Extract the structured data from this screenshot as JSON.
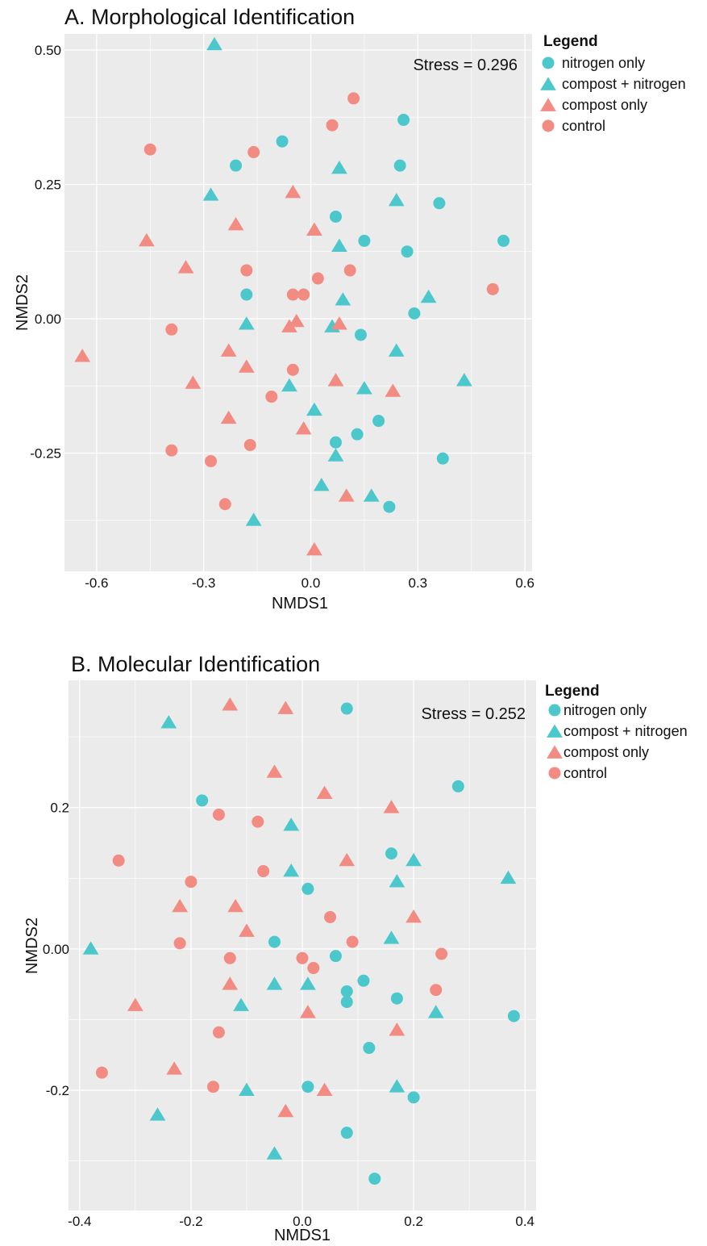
{
  "colors": {
    "nitrogen": "#4cc8cc",
    "compost": "#f28b82",
    "panel": "#ebebeb",
    "grid": "#ffffff"
  },
  "chart_data": [
    {
      "type": "scatter",
      "title": "A. Morphological Identification",
      "xlabel": "NMDS1",
      "ylabel": "NMDS2",
      "annotation": "Stress = 0.296",
      "xlim": [
        -0.69,
        0.62
      ],
      "ylim": [
        -0.47,
        0.53
      ],
      "xticks": [
        -0.6,
        -0.3,
        0.0,
        0.3,
        0.6
      ],
      "xtick_labels": [
        "-0.6",
        "-0.3",
        "0.0",
        "0.3",
        "0.6"
      ],
      "yticks": [
        -0.25,
        0.0,
        0.25,
        0.5
      ],
      "ytick_labels": [
        "-0.25",
        "0.00",
        "0.25",
        "0.50"
      ],
      "legend": {
        "title": "Legend",
        "position": "right",
        "entries": [
          {
            "label": "nitrogen only",
            "shape": "circle",
            "color": "#4cc8cc"
          },
          {
            "label": "compost + nitrogen",
            "shape": "triangle",
            "color": "#4cc8cc"
          },
          {
            "label": "compost only",
            "shape": "triangle",
            "color": "#f28b82"
          },
          {
            "label": "control",
            "shape": "circle",
            "color": "#f28b82"
          }
        ]
      },
      "series": [
        {
          "name": "nitrogen only",
          "shape": "circle",
          "color": "#4cc8cc",
          "points": [
            [
              -0.08,
              0.33
            ],
            [
              -0.21,
              0.285
            ],
            [
              0.26,
              0.37
            ],
            [
              0.25,
              0.285
            ],
            [
              0.36,
              0.215
            ],
            [
              0.07,
              0.19
            ],
            [
              0.15,
              0.145
            ],
            [
              0.27,
              0.125
            ],
            [
              0.54,
              0.145
            ],
            [
              -0.18,
              0.045
            ],
            [
              0.29,
              0.01
            ],
            [
              0.14,
              -0.03
            ],
            [
              0.19,
              -0.19
            ],
            [
              0.13,
              -0.215
            ],
            [
              0.07,
              -0.23
            ],
            [
              0.37,
              -0.26
            ],
            [
              0.22,
              -0.35
            ]
          ]
        },
        {
          "name": "compost + nitrogen",
          "shape": "triangle",
          "color": "#4cc8cc",
          "points": [
            [
              -0.27,
              0.51
            ],
            [
              -0.28,
              0.23
            ],
            [
              0.08,
              0.28
            ],
            [
              0.24,
              0.22
            ],
            [
              0.08,
              0.135
            ],
            [
              0.09,
              0.035
            ],
            [
              0.33,
              0.04
            ],
            [
              -0.18,
              -0.01
            ],
            [
              0.06,
              -0.015
            ],
            [
              0.24,
              -0.06
            ],
            [
              0.43,
              -0.115
            ],
            [
              -0.06,
              -0.125
            ],
            [
              0.15,
              -0.13
            ],
            [
              0.01,
              -0.17
            ],
            [
              0.07,
              -0.255
            ],
            [
              0.03,
              -0.31
            ],
            [
              0.17,
              -0.33
            ],
            [
              -0.16,
              -0.375
            ]
          ]
        },
        {
          "name": "compost only",
          "shape": "triangle",
          "color": "#f28b82",
          "points": [
            [
              -0.05,
              0.235
            ],
            [
              -0.21,
              0.175
            ],
            [
              0.01,
              0.165
            ],
            [
              -0.46,
              0.145
            ],
            [
              -0.35,
              0.095
            ],
            [
              -0.06,
              -0.015
            ],
            [
              -0.04,
              -0.005
            ],
            [
              0.08,
              -0.01
            ],
            [
              -0.23,
              -0.06
            ],
            [
              -0.18,
              -0.09
            ],
            [
              -0.33,
              -0.12
            ],
            [
              0.07,
              -0.115
            ],
            [
              0.23,
              -0.135
            ],
            [
              -0.23,
              -0.185
            ],
            [
              -0.02,
              -0.205
            ],
            [
              -0.64,
              -0.07
            ],
            [
              0.1,
              -0.33
            ],
            [
              0.01,
              -0.43
            ]
          ]
        },
        {
          "name": "control",
          "shape": "circle",
          "color": "#f28b82",
          "points": [
            [
              0.12,
              0.41
            ],
            [
              0.06,
              0.36
            ],
            [
              -0.45,
              0.315
            ],
            [
              -0.16,
              0.31
            ],
            [
              -0.18,
              0.09
            ],
            [
              0.11,
              0.09
            ],
            [
              0.02,
              0.075
            ],
            [
              -0.05,
              0.045
            ],
            [
              -0.02,
              0.045
            ],
            [
              0.51,
              0.055
            ],
            [
              -0.39,
              -0.02
            ],
            [
              -0.05,
              -0.095
            ],
            [
              -0.11,
              -0.145
            ],
            [
              -0.17,
              -0.235
            ],
            [
              -0.39,
              -0.245
            ],
            [
              -0.28,
              -0.265
            ],
            [
              -0.24,
              -0.345
            ]
          ]
        }
      ]
    },
    {
      "type": "scatter",
      "title": "B. Molecular Identification",
      "xlabel": "NMDS1",
      "ylabel": "NMDS2",
      "annotation": "Stress = 0.252",
      "xlim": [
        -0.42,
        0.42
      ],
      "ylim": [
        -0.37,
        0.38
      ],
      "xticks": [
        -0.4,
        -0.2,
        0.0,
        0.2,
        0.4
      ],
      "xtick_labels": [
        "-0.4",
        "-0.2",
        "0.0",
        "0.2",
        "0.4"
      ],
      "yticks": [
        -0.2,
        0.0,
        0.2
      ],
      "ytick_labels": [
        "-0.2",
        "0.00",
        "0.2"
      ],
      "legend": {
        "title": "Legend",
        "position": "right",
        "entries": [
          {
            "label": "nitrogen only",
            "shape": "circle",
            "color": "#4cc8cc"
          },
          {
            "label": "compost + nitrogen",
            "shape": "triangle",
            "color": "#4cc8cc"
          },
          {
            "label": "compost only",
            "shape": "triangle",
            "color": "#f28b82"
          },
          {
            "label": "control",
            "shape": "circle",
            "color": "#f28b82"
          }
        ]
      },
      "series": [
        {
          "name": "nitrogen only",
          "shape": "circle",
          "color": "#4cc8cc",
          "points": [
            [
              0.08,
              0.34
            ],
            [
              0.28,
              0.23
            ],
            [
              -0.18,
              0.21
            ],
            [
              0.16,
              0.135
            ],
            [
              0.01,
              0.085
            ],
            [
              -0.05,
              0.01
            ],
            [
              0.06,
              -0.01
            ],
            [
              0.11,
              -0.045
            ],
            [
              0.08,
              -0.06
            ],
            [
              0.08,
              -0.075
            ],
            [
              0.17,
              -0.07
            ],
            [
              0.38,
              -0.095
            ],
            [
              0.12,
              -0.14
            ],
            [
              0.01,
              -0.195
            ],
            [
              0.2,
              -0.21
            ],
            [
              0.08,
              -0.26
            ],
            [
              0.13,
              -0.325
            ]
          ]
        },
        {
          "name": "compost + nitrogen",
          "shape": "triangle",
          "color": "#4cc8cc",
          "points": [
            [
              -0.24,
              0.32
            ],
            [
              -0.02,
              0.175
            ],
            [
              0.2,
              0.125
            ],
            [
              0.37,
              0.1
            ],
            [
              -0.02,
              0.11
            ],
            [
              0.17,
              0.095
            ],
            [
              0.16,
              0.015
            ],
            [
              -0.38,
              0.0
            ],
            [
              -0.05,
              -0.05
            ],
            [
              0.01,
              -0.05
            ],
            [
              -0.11,
              -0.08
            ],
            [
              0.24,
              -0.09
            ],
            [
              -0.1,
              -0.2
            ],
            [
              0.17,
              -0.195
            ],
            [
              -0.26,
              -0.235
            ],
            [
              -0.05,
              -0.29
            ]
          ]
        },
        {
          "name": "compost only",
          "shape": "triangle",
          "color": "#f28b82",
          "points": [
            [
              -0.13,
              0.345
            ],
            [
              -0.03,
              0.34
            ],
            [
              -0.05,
              0.25
            ],
            [
              0.04,
              0.22
            ],
            [
              0.16,
              0.2
            ],
            [
              0.08,
              0.125
            ],
            [
              -0.22,
              0.06
            ],
            [
              -0.12,
              0.06
            ],
            [
              0.2,
              0.045
            ],
            [
              -0.1,
              0.025
            ],
            [
              -0.13,
              -0.05
            ],
            [
              -0.3,
              -0.08
            ],
            [
              0.01,
              -0.09
            ],
            [
              0.17,
              -0.115
            ],
            [
              -0.23,
              -0.17
            ],
            [
              0.04,
              -0.2
            ],
            [
              -0.03,
              -0.23
            ]
          ]
        },
        {
          "name": "control",
          "shape": "circle",
          "color": "#f28b82",
          "points": [
            [
              -0.15,
              0.19
            ],
            [
              -0.08,
              0.18
            ],
            [
              -0.33,
              0.125
            ],
            [
              -0.07,
              0.11
            ],
            [
              -0.2,
              0.095
            ],
            [
              0.05,
              0.045
            ],
            [
              -0.22,
              0.008
            ],
            [
              0.09,
              0.01
            ],
            [
              -0.13,
              -0.013
            ],
            [
              0.0,
              -0.013
            ],
            [
              0.02,
              -0.027
            ],
            [
              0.25,
              -0.007
            ],
            [
              0.24,
              -0.058
            ],
            [
              -0.15,
              -0.118
            ],
            [
              -0.36,
              -0.175
            ],
            [
              -0.16,
              -0.195
            ]
          ]
        }
      ]
    }
  ]
}
